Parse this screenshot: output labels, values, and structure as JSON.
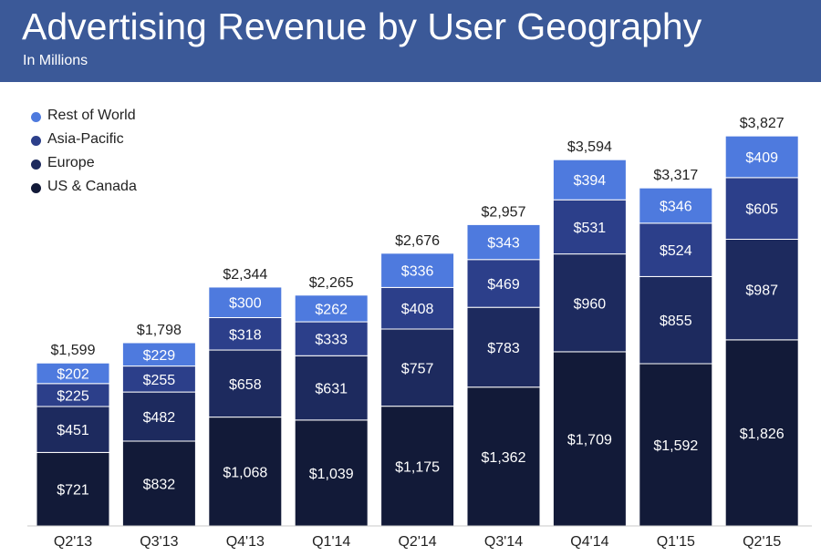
{
  "header": {
    "title": "Advertising Revenue by User Geography",
    "subtitle": "In Millions"
  },
  "colors": {
    "header_bg": "#3b5998",
    "rest_of_world": "#4e7ade",
    "asia_pacific": "#2c3f8a",
    "europe": "#1d2a5e",
    "us_canada": "#121a38"
  },
  "chart_data": {
    "type": "bar",
    "stacked": true,
    "title": "Advertising Revenue by User Geography",
    "subtitle": "In Millions",
    "categories": [
      "Q2'13",
      "Q3'13",
      "Q4'13",
      "Q1'14",
      "Q2'14",
      "Q3'14",
      "Q4'14",
      "Q1'15",
      "Q2'15"
    ],
    "series": [
      {
        "name": "US & Canada",
        "color": "#121a38",
        "values": [
          721,
          832,
          1068,
          1039,
          1175,
          1362,
          1709,
          1592,
          1826
        ]
      },
      {
        "name": "Europe",
        "color": "#1d2a5e",
        "values": [
          451,
          482,
          658,
          631,
          757,
          783,
          960,
          855,
          987
        ]
      },
      {
        "name": "Asia-Pacific",
        "color": "#2c3f8a",
        "values": [
          225,
          255,
          318,
          333,
          408,
          469,
          531,
          524,
          605
        ]
      },
      {
        "name": "Rest of World",
        "color": "#4e7ade",
        "values": [
          202,
          229,
          300,
          262,
          336,
          343,
          394,
          346,
          409
        ]
      }
    ],
    "totals": [
      1599,
      1798,
      2344,
      2265,
      2676,
      2957,
      3594,
      3317,
      3827
    ],
    "value_prefix": "$",
    "legend": {
      "placement": "top-left",
      "entries": [
        "Rest of World",
        "Asia-Pacific",
        "Europe",
        "US & Canada"
      ]
    },
    "grid": false,
    "ylim": [
      0,
      4000
    ]
  }
}
